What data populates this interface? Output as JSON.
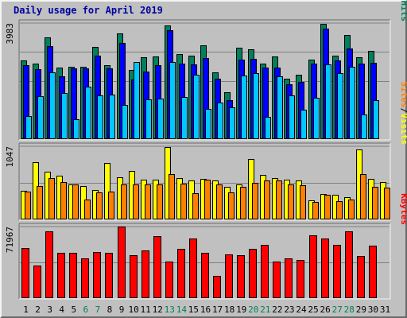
{
  "title": "Daily usage for April 2019",
  "colors": {
    "hits": "#00805c",
    "files": "#0000ff",
    "pages": "#00c8ff",
    "visits": "#ffff00",
    "sites": "#ff8000",
    "kbytes": "#ff0000",
    "weekend_label": "#00805c",
    "weekday_label": "#000000",
    "plot_background": "#c0c0c0",
    "grid": "#808080"
  },
  "chart_data": [
    {
      "type": "bar",
      "panel": "hits-files-pages",
      "ymax_label": "3983",
      "ylim": [
        0,
        3983
      ],
      "ylabel_parts": [
        "Pages",
        "Files",
        "Hits"
      ],
      "ylabel_separator": " / ",
      "categories": [
        "1",
        "2",
        "3",
        "4",
        "5",
        "6",
        "7",
        "8",
        "9",
        "10",
        "11",
        "12",
        "13",
        "14",
        "15",
        "16",
        "17",
        "18",
        "19",
        "20",
        "21",
        "22",
        "23",
        "24",
        "25",
        "26",
        "27",
        "28",
        "29",
        "30",
        "31"
      ],
      "series": [
        {
          "name": "Hits",
          "values": [
            2700,
            2570,
            3490,
            2440,
            2480,
            2480,
            3150,
            2530,
            3630,
            2350,
            2810,
            2820,
            3900,
            2910,
            2850,
            3210,
            2270,
            1580,
            3120,
            3080,
            2580,
            2840,
            2070,
            2190,
            2710,
            3950,
            2860,
            3570,
            2790,
            3020,
            0
          ]
        },
        {
          "name": "Files",
          "values": [
            2540,
            2390,
            3190,
            2150,
            2410,
            2410,
            2860,
            2410,
            3290,
            2030,
            2310,
            2540,
            3730,
            2590,
            2560,
            2780,
            2070,
            1320,
            2710,
            2750,
            2440,
            2450,
            1860,
            1960,
            2570,
            3780,
            2680,
            3110,
            2570,
            2610,
            0
          ]
        },
        {
          "name": "Pages",
          "values": [
            760,
            1460,
            2270,
            1570,
            650,
            1790,
            1480,
            1500,
            1150,
            2640,
            1350,
            1370,
            2640,
            1420,
            2190,
            1030,
            1230,
            1060,
            2170,
            2260,
            750,
            2140,
            1480,
            1000,
            1400,
            2560,
            2250,
            2470,
            830,
            1310,
            0
          ]
        }
      ]
    },
    {
      "type": "bar",
      "panel": "visits-sites",
      "ymax_label": "1047",
      "ylim": [
        0,
        1047
      ],
      "ylabel_parts": [
        "Sites",
        "Visits"
      ],
      "ylabel_separator": " / ",
      "categories": [
        "1",
        "2",
        "3",
        "4",
        "5",
        "6",
        "7",
        "8",
        "9",
        "10",
        "11",
        "12",
        "13",
        "14",
        "15",
        "16",
        "17",
        "18",
        "19",
        "20",
        "21",
        "22",
        "23",
        "24",
        "25",
        "26",
        "27",
        "28",
        "29",
        "30",
        "31"
      ],
      "series": [
        {
          "name": "Visits",
          "values": [
            400,
            820,
            680,
            620,
            500,
            470,
            410,
            800,
            600,
            690,
            560,
            560,
            1040,
            590,
            550,
            580,
            550,
            460,
            500,
            860,
            630,
            590,
            560,
            550,
            260,
            360,
            350,
            310,
            1000,
            580,
            530
          ]
        },
        {
          "name": "Sites",
          "values": [
            390,
            470,
            590,
            530,
            500,
            280,
            380,
            390,
            490,
            500,
            500,
            490,
            640,
            510,
            370,
            560,
            490,
            380,
            460,
            520,
            550,
            550,
            500,
            480,
            240,
            350,
            250,
            280,
            640,
            460,
            450
          ]
        }
      ]
    },
    {
      "type": "bar",
      "panel": "kbytes",
      "ymax_label": "71967",
      "ylim": [
        0,
        71967
      ],
      "ylabel": "KBytes",
      "categories": [
        "1",
        "2",
        "3",
        "4",
        "5",
        "6",
        "7",
        "8",
        "9",
        "10",
        "11",
        "12",
        "13",
        "14",
        "15",
        "16",
        "17",
        "18",
        "19",
        "20",
        "21",
        "22",
        "23",
        "24",
        "25",
        "26",
        "27",
        "28",
        "29",
        "30",
        "31"
      ],
      "series": [
        {
          "name": "KBytes",
          "values": [
            50000,
            32000,
            67000,
            45500,
            45000,
            40000,
            46000,
            45000,
            72000,
            43200,
            48000,
            62000,
            36000,
            49000,
            60000,
            45000,
            22000,
            44000,
            43000,
            49500,
            53500,
            36000,
            39500,
            38000,
            63000,
            59500,
            53500,
            67500,
            42000,
            52500,
            0
          ]
        }
      ]
    }
  ],
  "x_axis": {
    "labels": [
      "1",
      "2",
      "3",
      "4",
      "5",
      "6",
      "7",
      "8",
      "9",
      "10",
      "11",
      "12",
      "13",
      "14",
      "15",
      "16",
      "17",
      "18",
      "19",
      "20",
      "21",
      "22",
      "23",
      "24",
      "25",
      "26",
      "27",
      "28",
      "29",
      "30",
      "31"
    ],
    "weekend_days": [
      "6",
      "7",
      "13",
      "14",
      "20",
      "21",
      "27",
      "28"
    ]
  }
}
